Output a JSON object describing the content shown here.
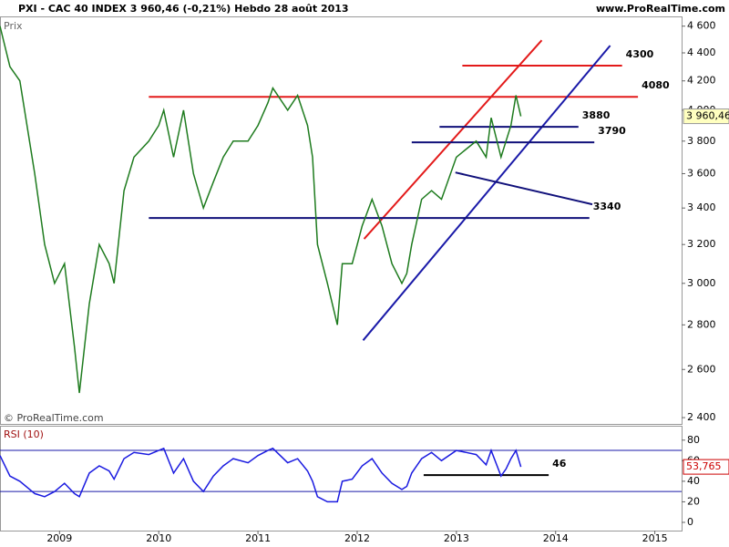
{
  "header": {
    "title": "PXI - CAC 40 INDEX   3 960,46 (-0,21%)   Hebdo  28 août 2013",
    "site": "www.ProRealTime.com"
  },
  "chart_data": [
    {
      "type": "line",
      "axis_label": "Prix",
      "watermark": "© ProRealTime.com",
      "log_scale": true,
      "x": [
        2008.4,
        2008.5,
        2008.6,
        2008.75,
        2008.85,
        2008.95,
        2009.05,
        2009.15,
        2009.2,
        2009.3,
        2009.4,
        2009.5,
        2009.55,
        2009.65,
        2009.75,
        2009.9,
        2010.0,
        2010.05,
        2010.15,
        2010.25,
        2010.35,
        2010.45,
        2010.55,
        2010.65,
        2010.75,
        2010.9,
        2011.0,
        2011.1,
        2011.15,
        2011.3,
        2011.4,
        2011.5,
        2011.55,
        2011.6,
        2011.7,
        2011.8,
        2011.85,
        2011.95,
        2012.05,
        2012.15,
        2012.25,
        2012.35,
        2012.45,
        2012.5,
        2012.55,
        2012.65,
        2012.75,
        2012.85,
        2013.0,
        2013.1,
        2013.2,
        2013.3,
        2013.35,
        2013.45,
        2013.5,
        2013.55,
        2013.6,
        2013.65
      ],
      "series": [
        {
          "color": "#1e7b1e",
          "values": [
            4600,
            4300,
            4200,
            3600,
            3200,
            3000,
            3100,
            2700,
            2500,
            2900,
            3200,
            3100,
            3000,
            3500,
            3700,
            3800,
            3900,
            4000,
            3700,
            4000,
            3600,
            3400,
            3550,
            3700,
            3800,
            3800,
            3900,
            4050,
            4150,
            4000,
            4100,
            3900,
            3700,
            3200,
            3000,
            2800,
            3100,
            3100,
            3300,
            3450,
            3300,
            3100,
            3000,
            3050,
            3200,
            3450,
            3500,
            3450,
            3700,
            3750,
            3800,
            3700,
            3950,
            3700,
            3800,
            3900,
            4100,
            3960
          ]
        }
      ],
      "last_label": "3 960,46",
      "xlim": [
        2008.4,
        2015.27
      ],
      "ylim": [
        2375,
        4675
      ],
      "yticks": [
        {
          "value": 2400,
          "label": "2 400"
        },
        {
          "value": 2600,
          "label": "2 600"
        },
        {
          "value": 2800,
          "label": "2 800"
        },
        {
          "value": 3000,
          "label": "3 000"
        },
        {
          "value": 3200,
          "label": "3 200"
        },
        {
          "value": 3400,
          "label": "3 400"
        },
        {
          "value": 3600,
          "label": "3 600"
        },
        {
          "value": 3800,
          "label": "3 800"
        },
        {
          "value": 4000,
          "label": "4 000"
        },
        {
          "value": 4200,
          "label": "4 200"
        },
        {
          "value": 4400,
          "label": "4 400"
        },
        {
          "value": 4600,
          "label": "4 600"
        }
      ],
      "lines": [
        {
          "x": [
            2012.07,
            2013.86
          ],
          "y": [
            3230,
            4493
          ],
          "color": "#e31a1a"
        },
        {
          "x": [
            2013.06,
            2014.67
          ],
          "y": [
            4308,
            4308
          ],
          "color": "#e31a1a",
          "label": "4300"
        },
        {
          "x": [
            2009.9,
            2014.83
          ],
          "y": [
            4090,
            4090
          ],
          "color": "#e31a1a",
          "label": "4080"
        },
        {
          "x": [
            2012.06,
            2014.55
          ],
          "y": [
            2729,
            4454
          ],
          "color": "#1a1aa8"
        },
        {
          "x": [
            2012.83,
            2014.23
          ],
          "y": [
            3891,
            3891
          ],
          "color": "#10107a",
          "label": "3880"
        },
        {
          "x": [
            2012.55,
            2014.39
          ],
          "y": [
            3792,
            3792
          ],
          "color": "#10107a",
          "label": "3790"
        },
        {
          "x": [
            2012.99,
            2014.37
          ],
          "y": [
            3607,
            3421
          ],
          "color": "#10107a"
        },
        {
          "x": [
            2009.9,
            2014.34
          ],
          "y": [
            3344,
            3344
          ],
          "color": "#10107a",
          "label": "3340"
        }
      ]
    },
    {
      "type": "line",
      "axis_label": "RSI (10)",
      "series": [
        {
          "color": "#1a1ae0",
          "values": [
            65,
            45,
            40,
            28,
            25,
            30,
            38,
            28,
            25,
            48,
            55,
            50,
            42,
            62,
            68,
            66,
            70,
            72,
            48,
            62,
            40,
            30,
            45,
            55,
            62,
            58,
            65,
            70,
            72,
            58,
            62,
            50,
            40,
            25,
            20,
            20,
            40,
            42,
            55,
            62,
            48,
            38,
            32,
            35,
            48,
            62,
            68,
            60,
            70,
            68,
            66,
            56,
            70,
            45,
            52,
            62,
            70,
            54
          ]
        }
      ],
      "last_label": "53,765",
      "ylim": [
        -8,
        94
      ],
      "yticks": [
        0,
        20,
        40,
        60,
        80
      ],
      "hlines": [
        70,
        30
      ],
      "xticks": [
        2009,
        2010,
        2011,
        2012,
        2013,
        2014,
        2015
      ],
      "lines": [
        {
          "x": [
            2012.67,
            2013.93
          ],
          "y": [
            46,
            46
          ],
          "color": "#000000",
          "label": "46"
        }
      ]
    }
  ]
}
